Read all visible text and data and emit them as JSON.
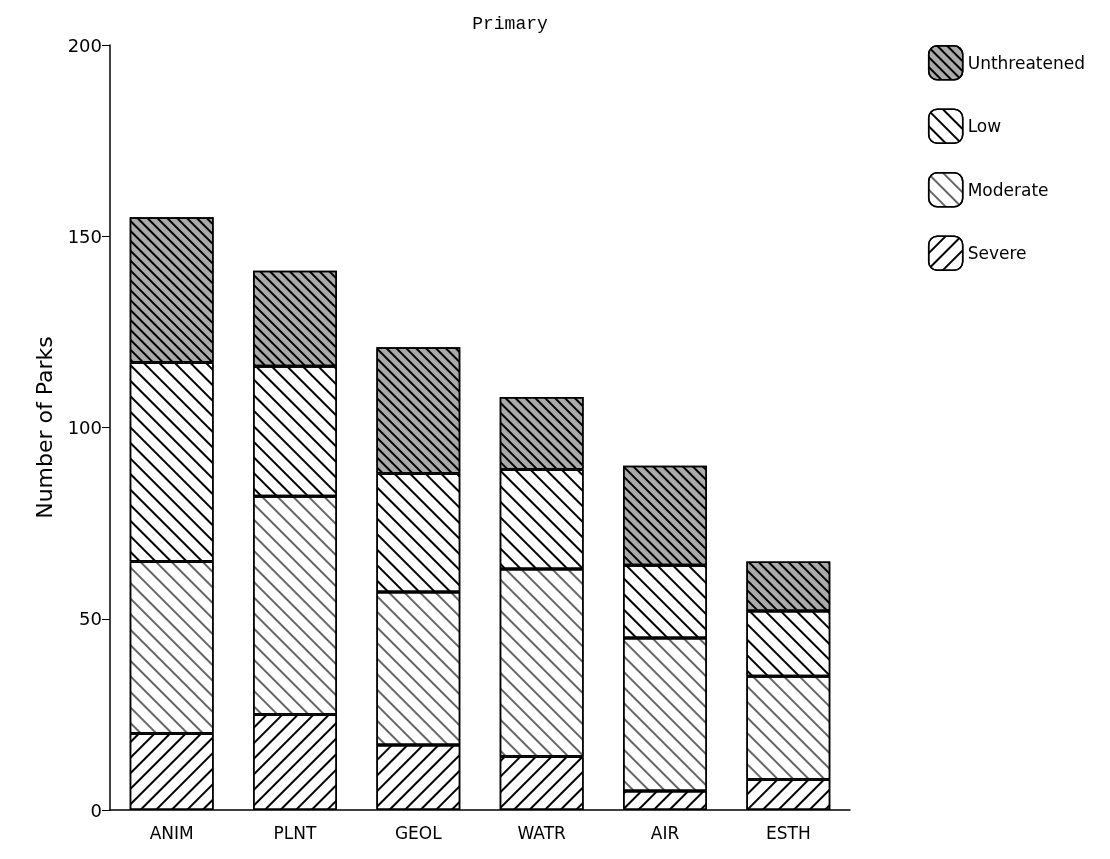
{
  "chart_data": {
    "type": "bar",
    "title": "Primary",
    "ylabel": "Number of Parks",
    "categories": [
      "ANIM",
      "PLNT",
      "GEOL",
      "WATR",
      "AIR",
      "ESTH"
    ],
    "stacked": true,
    "ylim": [
      0,
      200
    ],
    "yticks": [
      0,
      50,
      100,
      150,
      200
    ],
    "grid": false,
    "legend": "top right",
    "series": [
      {
        "name": "Severe",
        "color": "#ffffff",
        "values": [
          20,
          25,
          17,
          14,
          5,
          8
        ]
      },
      {
        "name": "Moderate",
        "color": "#ffffff",
        "values": [
          45,
          57,
          40,
          49,
          40,
          27
        ]
      },
      {
        "name": "Low",
        "color": "#ffffff",
        "values": [
          52,
          34,
          31,
          26,
          19,
          17
        ]
      },
      {
        "name": "Unthreatened",
        "color": "#aaaaaa",
        "values": [
          38,
          25,
          33,
          19,
          26,
          13
        ]
      }
    ]
  }
}
